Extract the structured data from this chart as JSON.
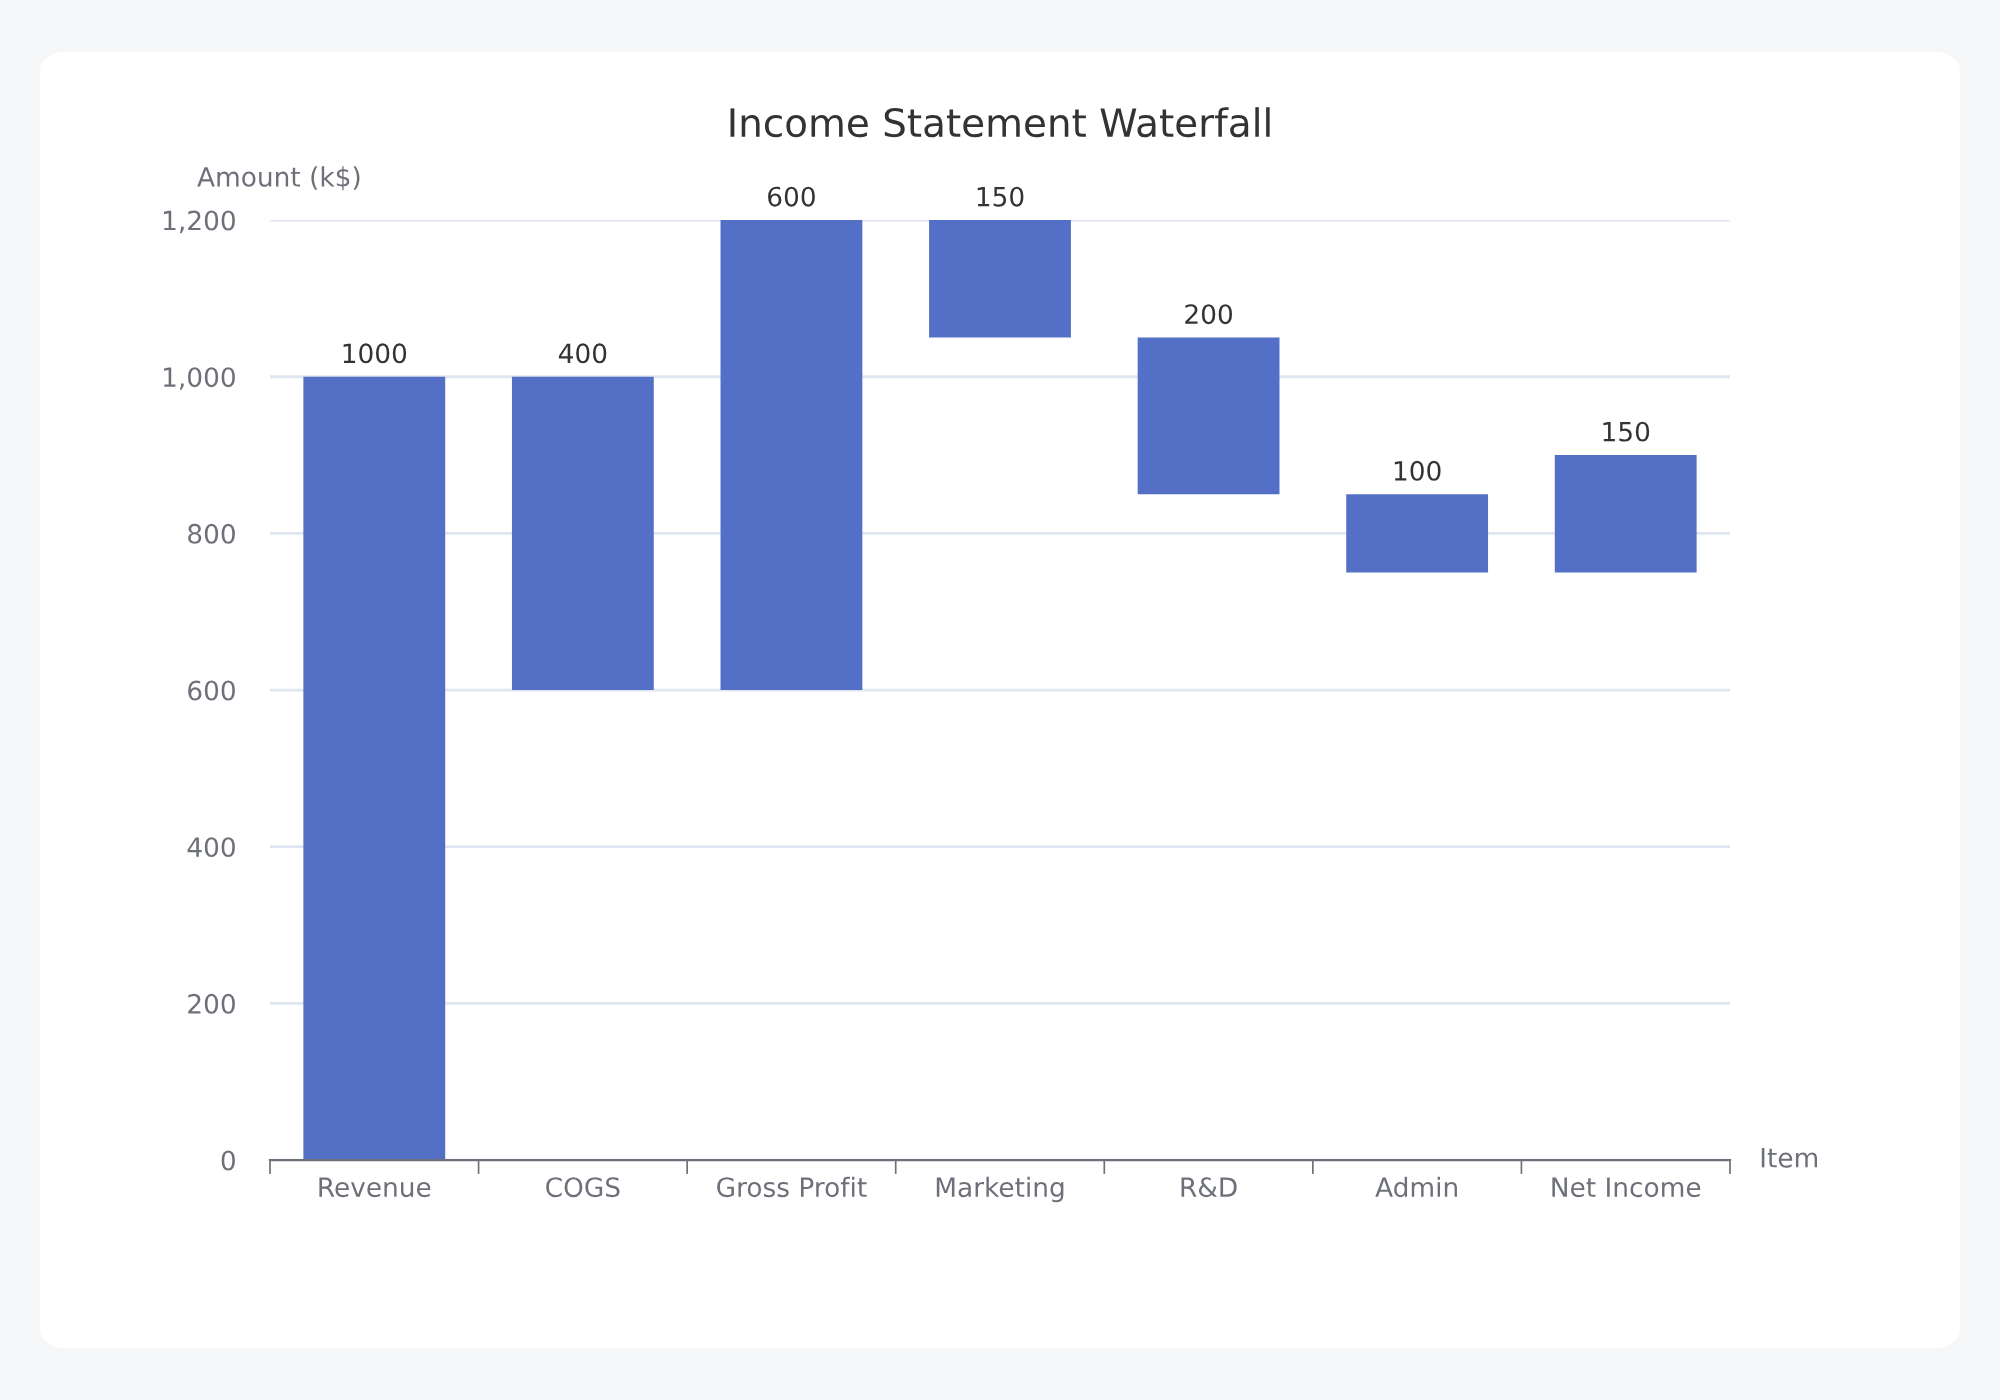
{
  "chart_data": {
    "type": "bar",
    "title": "Income Statement Waterfall",
    "xlabel": "Item",
    "ylabel": "Amount (k$)",
    "categories": [
      "Revenue",
      "COGS",
      "Gross Profit",
      "Marketing",
      "R&D",
      "Admin",
      "Net Income"
    ],
    "values": [
      1000,
      400,
      600,
      150,
      200,
      100,
      150
    ],
    "base": [
      0,
      600,
      600,
      1050,
      850,
      750,
      750
    ],
    "color": "#5470c6",
    "ylim": [
      0,
      1200
    ],
    "yticks": [
      0,
      200,
      400,
      600,
      800,
      {
        "value": 1000,
        "label": "1,000"
      },
      {
        "value": 1200,
        "label": "1,200"
      }
    ],
    "grid": "y",
    "data_labels": true
  }
}
